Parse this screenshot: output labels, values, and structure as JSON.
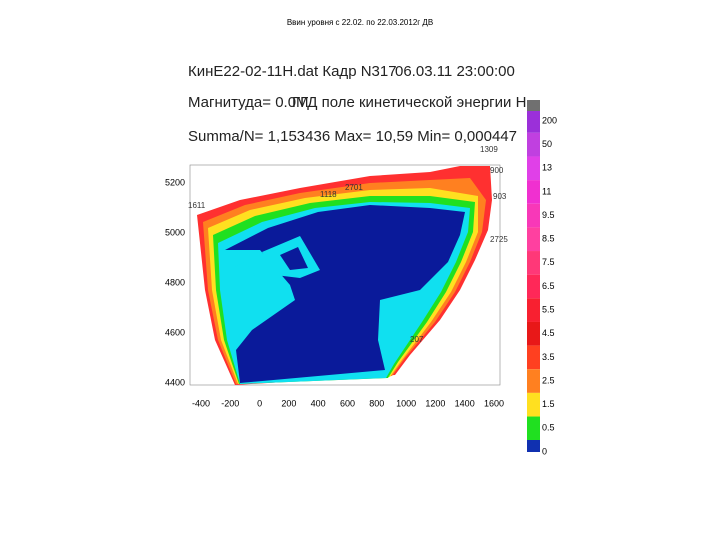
{
  "slide_title": "Ввин уровня с 22.02. по 22.03.2012г ДВ",
  "header": {
    "file": "КинE22-02-11H.dat Кадр N317",
    "datetime": "06.03.11 23:00:00",
    "magnitude": "Магнитуда= 0.0M",
    "field": "ГГД поле кинетической энергии Н.",
    "stats": "Summa/N= 1,153436 Max= 10,59 Min= 0,000447"
  },
  "axes": {
    "xticks": [
      -400,
      -200,
      0,
      200,
      400,
      600,
      800,
      1000,
      1200,
      1400,
      1600
    ],
    "yticks": [
      5200,
      5000,
      4800,
      4600,
      4400
    ]
  },
  "stations": [
    "1309",
    "900",
    "1611",
    "903",
    "2725",
    "2701",
    "1118",
    "207"
  ],
  "colorbar": {
    "levels": [
      {
        "label": "200",
        "color": "#9b30d9"
      },
      {
        "label": "50",
        "color": "#c040e0"
      },
      {
        "label": "13",
        "color": "#e040e8"
      },
      {
        "label": "11",
        "color": "#f030d0"
      },
      {
        "label": "9.5",
        "color": "#f838b8"
      },
      {
        "label": "8.5",
        "color": "#ff40a0"
      },
      {
        "label": "7.5",
        "color": "#ff3878"
      },
      {
        "label": "6.5",
        "color": "#ff2858"
      },
      {
        "label": "5.5",
        "color": "#f82030"
      },
      {
        "label": "4.5",
        "color": "#e81818"
      },
      {
        "label": "3.5",
        "color": "#ff4020"
      },
      {
        "label": "2.5",
        "color": "#ff8020"
      },
      {
        "label": "1.5",
        "color": "#ffe020"
      },
      {
        "label": "0.5",
        "color": "#20e020"
      },
      {
        "label": "0",
        "color": "#10e0f0"
      }
    ],
    "bottom_color": "#1030b0",
    "top_color": "#707070"
  }
}
